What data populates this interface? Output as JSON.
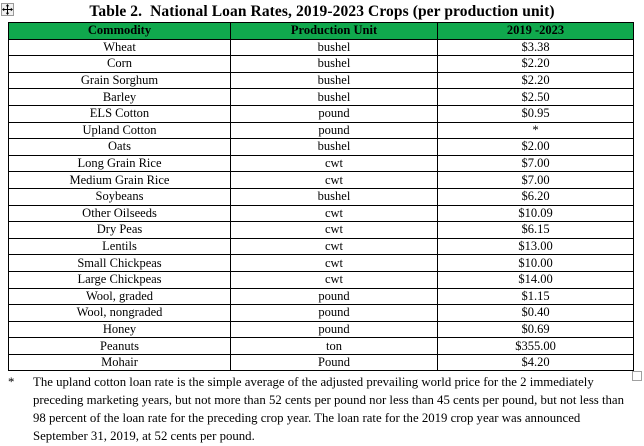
{
  "page": {
    "title": "Table 2.  National Loan Rates, 2019-2023 Crops (per production unit)"
  },
  "table": {
    "header_bg": "#10A84D",
    "header_text_color": "#000000",
    "border_color": "#000000",
    "headers": [
      "Commodity",
      "Production Unit",
      "2019 -2023"
    ],
    "rows": [
      [
        "Wheat",
        "bushel",
        "$3.38"
      ],
      [
        "Corn",
        "bushel",
        "$2.20"
      ],
      [
        "Grain Sorghum",
        "bushel",
        "$2.20"
      ],
      [
        "Barley",
        "bushel",
        "$2.50"
      ],
      [
        "ELS Cotton",
        "pound",
        "$0.95"
      ],
      [
        "Upland Cotton",
        "pound",
        "*"
      ],
      [
        "Oats",
        "bushel",
        "$2.00"
      ],
      [
        "Long Grain Rice",
        "cwt",
        "$7.00"
      ],
      [
        "Medium Grain Rice",
        "cwt",
        "$7.00"
      ],
      [
        "Soybeans",
        "bushel",
        "$6.20"
      ],
      [
        "Other Oilseeds",
        "cwt",
        "$10.09"
      ],
      [
        "Dry Peas",
        "cwt",
        "$6.15"
      ],
      [
        "Lentils",
        "cwt",
        "$13.00"
      ],
      [
        "Small Chickpeas",
        "cwt",
        "$10.00"
      ],
      [
        "Large Chickpeas",
        "cwt",
        "$14.00"
      ],
      [
        "Wool, graded",
        "pound",
        "$1.15"
      ],
      [
        "Wool, nongraded",
        "pound",
        "$0.40"
      ],
      [
        "Honey",
        "pound",
        "$0.69"
      ],
      [
        "Peanuts",
        "ton",
        "$355.00"
      ],
      [
        "Mohair",
        "Pound",
        "$4.20"
      ]
    ]
  },
  "footnote": {
    "marker": "*",
    "text": "The upland cotton loan rate is the simple average of the adjusted prevailing world price for the 2 immediately preceding marketing years, but not more than 52 cents per pound nor less than 45 cents per pound, but not less than 98 percent of the loan rate for the preceding crop year. The loan rate for the 2019 crop year was announced September 31, 2019, at 52 cents per pound."
  },
  "icons": {
    "move_handle": "four-way-arrow",
    "resize_handle": "square-sizing-box"
  }
}
